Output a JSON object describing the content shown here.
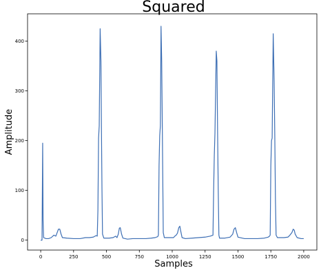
{
  "chart_data": {
    "type": "line",
    "title": "Squared",
    "xlabel": "Samples",
    "ylabel": "Amplitude",
    "xlim": [
      -100,
      2100
    ],
    "ylim": [
      -20,
      455
    ],
    "xticks": [
      0,
      250,
      500,
      750,
      1000,
      1250,
      1500,
      1750,
      2000
    ],
    "yticks": [
      0,
      100,
      200,
      300,
      400
    ],
    "grid": false,
    "series": [
      {
        "color": "#3c6eb4",
        "points": [
          [
            0,
            0
          ],
          [
            10,
            0
          ],
          [
            15,
            195
          ],
          [
            18,
            40
          ],
          [
            22,
            5
          ],
          [
            40,
            3
          ],
          [
            60,
            3
          ],
          [
            80,
            5
          ],
          [
            100,
            10
          ],
          [
            115,
            8
          ],
          [
            125,
            15
          ],
          [
            135,
            22
          ],
          [
            145,
            22
          ],
          [
            155,
            12
          ],
          [
            165,
            5
          ],
          [
            200,
            4
          ],
          [
            250,
            3
          ],
          [
            300,
            3
          ],
          [
            340,
            5
          ],
          [
            370,
            5
          ],
          [
            400,
            6
          ],
          [
            420,
            9
          ],
          [
            430,
            8
          ],
          [
            435,
            60
          ],
          [
            440,
            205
          ],
          [
            445,
            230
          ],
          [
            452,
            425
          ],
          [
            458,
            360
          ],
          [
            462,
            220
          ],
          [
            466,
            100
          ],
          [
            470,
            12
          ],
          [
            480,
            4
          ],
          [
            520,
            4
          ],
          [
            550,
            5
          ],
          [
            570,
            8
          ],
          [
            580,
            5
          ],
          [
            590,
            12
          ],
          [
            598,
            24
          ],
          [
            605,
            25
          ],
          [
            615,
            12
          ],
          [
            625,
            4
          ],
          [
            660,
            2
          ],
          [
            700,
            3
          ],
          [
            750,
            3
          ],
          [
            800,
            3
          ],
          [
            840,
            4
          ],
          [
            870,
            5
          ],
          [
            890,
            7
          ],
          [
            895,
            10
          ],
          [
            900,
            150
          ],
          [
            905,
            210
          ],
          [
            910,
            230
          ],
          [
            915,
            430
          ],
          [
            920,
            360
          ],
          [
            925,
            220
          ],
          [
            932,
            15
          ],
          [
            940,
            5
          ],
          [
            980,
            5
          ],
          [
            1010,
            5
          ],
          [
            1020,
            8
          ],
          [
            1030,
            10
          ],
          [
            1040,
            14
          ],
          [
            1050,
            25
          ],
          [
            1058,
            28
          ],
          [
            1065,
            18
          ],
          [
            1075,
            5
          ],
          [
            1100,
            3
          ],
          [
            1150,
            4
          ],
          [
            1200,
            5
          ],
          [
            1250,
            6
          ],
          [
            1290,
            8
          ],
          [
            1310,
            10
          ],
          [
            1315,
            100
          ],
          [
            1320,
            170
          ],
          [
            1325,
            215
          ],
          [
            1335,
            380
          ],
          [
            1340,
            360
          ],
          [
            1345,
            220
          ],
          [
            1350,
            100
          ],
          [
            1355,
            10
          ],
          [
            1360,
            4
          ],
          [
            1400,
            4
          ],
          [
            1440,
            6
          ],
          [
            1460,
            12
          ],
          [
            1470,
            22
          ],
          [
            1480,
            25
          ],
          [
            1490,
            15
          ],
          [
            1500,
            6
          ],
          [
            1550,
            3
          ],
          [
            1600,
            3
          ],
          [
            1650,
            3
          ],
          [
            1700,
            4
          ],
          [
            1730,
            6
          ],
          [
            1740,
            8
          ],
          [
            1745,
            10
          ],
          [
            1750,
            150
          ],
          [
            1755,
            200
          ],
          [
            1760,
            205
          ],
          [
            1768,
            415
          ],
          [
            1775,
            320
          ],
          [
            1780,
            210
          ],
          [
            1785,
            80
          ],
          [
            1790,
            10
          ],
          [
            1800,
            5
          ],
          [
            1850,
            5
          ],
          [
            1880,
            6
          ],
          [
            1895,
            10
          ],
          [
            1910,
            15
          ],
          [
            1920,
            22
          ],
          [
            1928,
            20
          ],
          [
            1935,
            12
          ],
          [
            1950,
            5
          ],
          [
            1980,
            3
          ],
          [
            2000,
            3
          ]
        ]
      }
    ]
  }
}
